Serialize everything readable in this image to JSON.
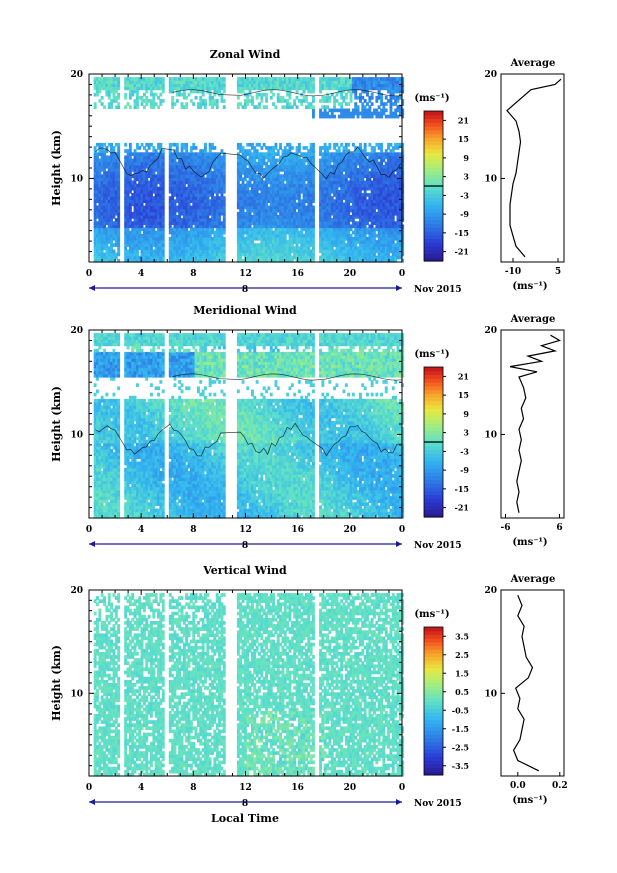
{
  "figure": {
    "x_tick_labels": [
      "0",
      "4",
      "8",
      "12",
      "16",
      "20",
      "0"
    ],
    "day_label": "8",
    "month_label": "Nov 2015",
    "x_axis_title": "Local Time",
    "y_axis_title": "Height (km)",
    "colorbar_unit": "(ms⁻¹)",
    "avg_unit": "(ms⁻¹)"
  },
  "chart_data": [
    {
      "type": "heatmap",
      "title": "Zonal Wind",
      "ylabel": "Height (km)",
      "xlabel": "Local Time",
      "xlim": [
        0,
        24
      ],
      "ylim": [
        2,
        20
      ],
      "y_ticks": [
        "10",
        "20"
      ],
      "colorbar_ticks": [
        "21",
        "15",
        "9",
        "3",
        "-3",
        "-9",
        "-15",
        "-21"
      ],
      "colorbar_range": [
        -24,
        24
      ],
      "zero_contour": true,
      "average_profile": {
        "title": "Average",
        "xlim": [
          -14,
          7
        ],
        "x_ticks": [
          "-10",
          "5"
        ],
        "y_ticks": [
          "10",
          "20"
        ],
        "heights_km": [
          2.5,
          3.5,
          4.5,
          5.5,
          6.5,
          7.5,
          8.5,
          9.5,
          10.5,
          11.5,
          12.5,
          13.5,
          14.5,
          15.5,
          16.5,
          17.5,
          18.5,
          19.0,
          19.5
        ],
        "values": [
          -6,
          -9,
          -10,
          -11,
          -11,
          -11,
          -10.5,
          -10,
          -9,
          -8.5,
          -8,
          -7.5,
          -8,
          -9,
          -12,
          -8,
          -4,
          4,
          6
        ]
      }
    },
    {
      "type": "heatmap",
      "title": "Meridional Wind",
      "ylabel": "Height (km)",
      "xlabel": "Local Time",
      "xlim": [
        0,
        24
      ],
      "ylim": [
        2,
        20
      ],
      "y_ticks": [
        "10",
        "20"
      ],
      "colorbar_ticks": [
        "21",
        "15",
        "9",
        "3",
        "-3",
        "-9",
        "-15",
        "-21"
      ],
      "colorbar_range": [
        -24,
        24
      ],
      "zero_contour": true,
      "average_profile": {
        "title": "Average",
        "xlim": [
          -7,
          7
        ],
        "x_ticks": [
          "-6",
          "6"
        ],
        "y_ticks": [
          "10",
          "20"
        ],
        "heights_km": [
          2.5,
          3.5,
          4.5,
          5.5,
          6.5,
          7.5,
          8.5,
          9.5,
          10.5,
          11.5,
          12.5,
          13.5,
          14.5,
          15.5,
          16.0,
          16.5,
          17.0,
          17.5,
          18.0,
          18.5,
          19.0,
          19.5
        ],
        "values": [
          -3,
          -3.5,
          -3,
          -3.5,
          -3,
          -2.5,
          -3,
          -2.5,
          -3,
          -2,
          -2.5,
          -1.5,
          -2,
          -3,
          1,
          -5,
          2,
          -1,
          5,
          2,
          6,
          4
        ]
      }
    },
    {
      "type": "heatmap",
      "title": "Vertical Wind",
      "ylabel": "Height (km)",
      "xlabel": "Local Time",
      "xlim": [
        0,
        24
      ],
      "ylim": [
        2,
        20
      ],
      "y_ticks": [
        "10",
        "20"
      ],
      "colorbar_ticks": [
        "3.5",
        "2.5",
        "1.5",
        "0.5",
        "-0.5",
        "-1.5",
        "-2.5",
        "-3.5"
      ],
      "colorbar_range": [
        -4,
        4
      ],
      "zero_contour": false,
      "average_profile": {
        "title": "Average",
        "xlim": [
          -0.08,
          0.22
        ],
        "x_ticks": [
          "0.0",
          "0.2"
        ],
        "y_ticks": [
          "10",
          "20"
        ],
        "heights_km": [
          2.5,
          3.5,
          4.5,
          5.5,
          6.5,
          7.5,
          8.5,
          9.5,
          10.5,
          11.5,
          12.5,
          13.5,
          14.5,
          15.5,
          16.5,
          17.5,
          18.5,
          19.5
        ],
        "values": [
          0.1,
          0.0,
          -0.02,
          0.01,
          0.02,
          0.03,
          0.0,
          0.01,
          -0.01,
          0.05,
          0.07,
          0.04,
          0.03,
          0.02,
          0.03,
          0.0,
          0.02,
          0.0
        ]
      }
    }
  ]
}
